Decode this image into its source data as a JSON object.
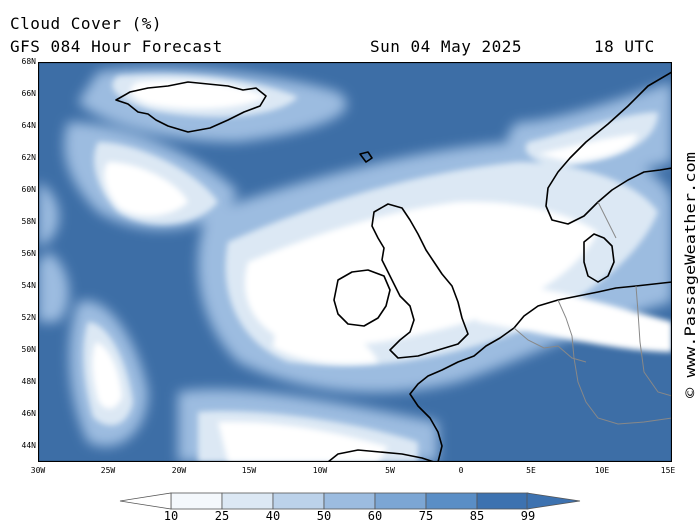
{
  "header": {
    "title": "Cloud Cover (%)",
    "subtitle": "GFS 084 Hour Forecast",
    "date": "Sun 04 May 2025",
    "time": "18 UTC"
  },
  "watermark": "© www.PassageWeather.com",
  "lat_labels": [
    "68N",
    "66N",
    "64N",
    "62N",
    "60N",
    "58N",
    "56N",
    "54N",
    "52N",
    "50N",
    "48N",
    "46N",
    "44N"
  ],
  "lon_labels": [
    "30W",
    "25W",
    "20W",
    "15W",
    "10W",
    "5W",
    "0",
    "5E",
    "10E",
    "15E"
  ],
  "legend": {
    "ticks": [
      "10",
      "25",
      "40",
      "50",
      "60",
      "75",
      "85",
      "99"
    ],
    "colors": [
      "#ffffff",
      "#f4f8fc",
      "#dce8f4",
      "#bcd2ea",
      "#9cbce0",
      "#7ca6d4",
      "#5a8ec6",
      "#3d72b0"
    ]
  },
  "colors": {
    "sea_cloudless": "#3d6ea6",
    "coastline": "#000000",
    "border": "#888888"
  }
}
